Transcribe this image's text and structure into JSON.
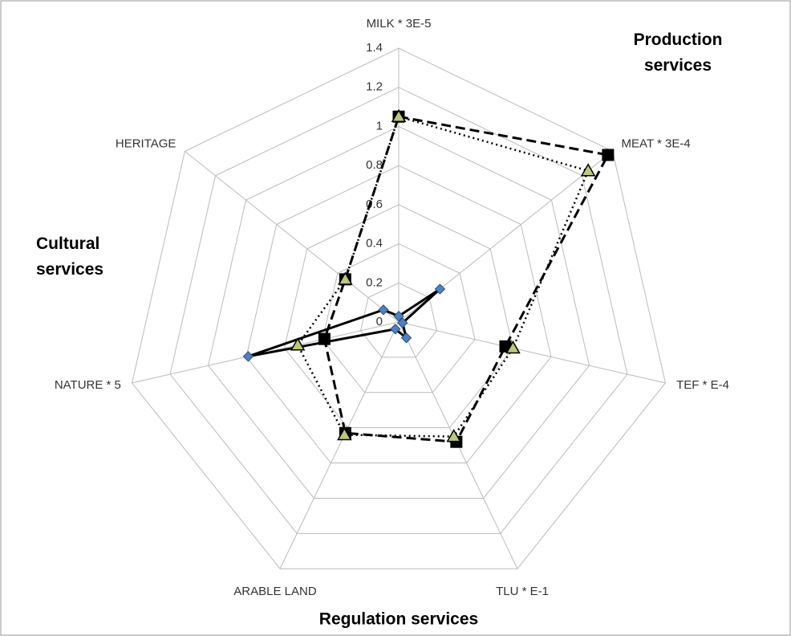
{
  "chart_data": {
    "type": "radar",
    "categories": [
      "MILK * 3E-5",
      "MEAT * 3E-4",
      "TEF * E-4",
      "TLU * E-1",
      "ARABLE LAND",
      "NATURE * 5",
      "HERITAGE"
    ],
    "rlim": [
      0,
      1.4
    ],
    "rticks": [
      0,
      0.2,
      0.4,
      0.6,
      0.8,
      1,
      1.2,
      1.4
    ],
    "grid": true,
    "annotations": [
      "Production services",
      "Cultural services",
      "Regulation services"
    ],
    "series": [
      {
        "color": "#000000",
        "line_color": "#000000",
        "dash": "dashed",
        "marker": "square",
        "values": [
          1.05,
          1.37,
          0.56,
          0.68,
          0.63,
          0.39,
          0.35
        ]
      },
      {
        "color": "#b8c97a",
        "line_color": "#000000",
        "dash": "dotted",
        "marker": "triangle",
        "values": [
          1.05,
          1.24,
          0.6,
          0.65,
          0.64,
          0.53,
          0.35
        ]
      },
      {
        "color": "#4f81bd",
        "line_color": "#000000",
        "dash": "solid",
        "marker": "diamond",
        "values": [
          0.03,
          0.27,
          0.02,
          0.09,
          0.04,
          0.79,
          0.1
        ]
      }
    ]
  }
}
